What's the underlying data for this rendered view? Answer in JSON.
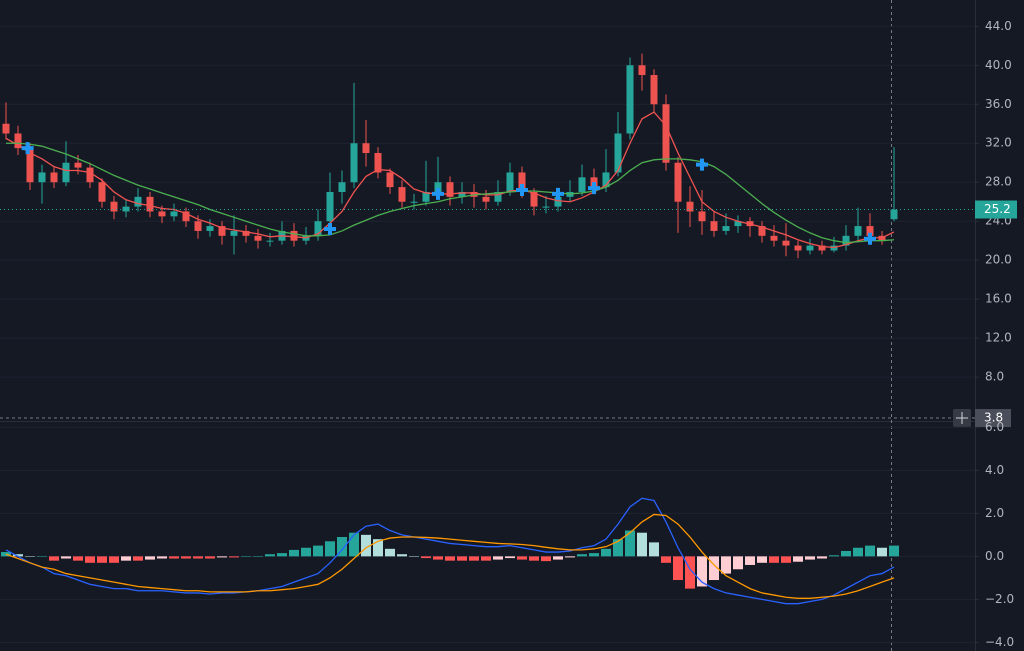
{
  "chart_data": [
    {
      "type": "candlestick",
      "open": [
        34,
        33,
        31.5,
        28,
        29,
        28,
        30,
        29.5,
        28,
        26,
        25,
        25.5,
        26.5,
        25,
        24.5,
        25,
        24,
        23,
        23.5,
        22.5,
        23,
        22.5,
        22,
        22,
        23,
        22,
        22.5,
        24,
        27,
        28,
        32,
        31,
        29,
        27.5,
        26,
        26,
        27,
        28,
        26.5,
        27,
        26.5,
        26,
        27,
        29,
        27,
        25.5,
        25.5,
        26.5,
        27,
        28.5,
        27.5,
        29,
        33,
        40,
        39,
        36,
        30,
        26,
        25,
        24,
        23,
        23.5,
        24,
        23.5,
        22.5,
        22,
        21.5,
        21,
        21.5,
        21,
        21.5,
        22.5,
        23.5,
        22.5,
        24.2
      ],
      "high": [
        36.2,
        33.8,
        32,
        29.8,
        29.6,
        32.2,
        30.8,
        30,
        28.4,
        26.6,
        26.2,
        27.4,
        27,
        25.6,
        25.8,
        25.4,
        24.6,
        24.2,
        24,
        24.6,
        23.6,
        23.2,
        22.8,
        24,
        23.8,
        23.4,
        25.2,
        29,
        29.2,
        38.2,
        34.4,
        31.6,
        29.4,
        28.2,
        26.8,
        30.2,
        30.6,
        28.6,
        28,
        27.8,
        27.2,
        28.2,
        30,
        29.6,
        27.4,
        26.6,
        27.2,
        28.2,
        29.8,
        29.4,
        31.4,
        35.2,
        40.8,
        41.2,
        39.6,
        37,
        30.6,
        27.6,
        27.2,
        25,
        24.8,
        24.6,
        24.4,
        24,
        23.6,
        23.8,
        22,
        22.2,
        22,
        22.4,
        23.6,
        25.4,
        24.8,
        23,
        31.6
      ],
      "low": [
        32.4,
        30.8,
        27.2,
        25.8,
        27.4,
        27.6,
        28.8,
        27.4,
        25.4,
        24.2,
        24.4,
        25,
        24.4,
        23.8,
        24,
        23.4,
        22.2,
        22.4,
        21.6,
        20.6,
        21.8,
        21.2,
        21.4,
        21.6,
        21.4,
        21.6,
        22,
        23.6,
        25.8,
        27.4,
        29.6,
        28.4,
        26.8,
        25.4,
        25.2,
        25.6,
        26.4,
        25.6,
        25.8,
        25.4,
        25.2,
        25.6,
        26.6,
        26.4,
        24.6,
        24.8,
        25,
        26,
        26.6,
        26.8,
        27,
        28.6,
        32.4,
        37.4,
        35.2,
        29.2,
        22.8,
        23.4,
        22.6,
        22.4,
        22.6,
        22.8,
        22.4,
        21.8,
        21.4,
        20.4,
        20.2,
        20.6,
        20.6,
        20.8,
        21,
        22,
        22,
        21.6,
        24
      ],
      "close": [
        33,
        31.5,
        28,
        29,
        28,
        30,
        29.5,
        28,
        26,
        25,
        25.5,
        26.5,
        25,
        24.5,
        25,
        24,
        23,
        23.5,
        22.5,
        23,
        22.5,
        22,
        22,
        23,
        22,
        22.5,
        24,
        27,
        28,
        32,
        31,
        29,
        27.5,
        26,
        26,
        27,
        28,
        26.5,
        27,
        26.5,
        26,
        27,
        29,
        27,
        25.5,
        25.5,
        26.5,
        27,
        28.5,
        27.5,
        29,
        33,
        40,
        39,
        36,
        30,
        26,
        25,
        24,
        23,
        23.5,
        24,
        23.5,
        22.5,
        22,
        21.5,
        21,
        21.5,
        21,
        21.5,
        22.5,
        23.5,
        22.5,
        22,
        25.2
      ],
      "up_color": "#26a69a",
      "down_color": "#ef5350",
      "lines": [
        {
          "color": "#f05350",
          "values": [
            32.5,
            31.8,
            31,
            30.4,
            29.6,
            29.2,
            29.2,
            29,
            28.2,
            27,
            26.2,
            25.8,
            25.6,
            25.3,
            25.2,
            24.8,
            24.2,
            23.8,
            23.3,
            23.1,
            22.9,
            22.7,
            22.4,
            22.5,
            22.4,
            22.3,
            22.7,
            23.8,
            25,
            27,
            28.6,
            29.3,
            29.2,
            28.4,
            27.3,
            26.9,
            26.8,
            26.8,
            26.9,
            26.9,
            26.7,
            26.7,
            27.1,
            27.2,
            26.9,
            26.4,
            26.1,
            26,
            26.4,
            27,
            27.7,
            29.2,
            32,
            34.5,
            35.2,
            33.8,
            31,
            28.5,
            26,
            25,
            24.4,
            24,
            23.7,
            23.4,
            23,
            22.6,
            22.1,
            21.7,
            21.4,
            21.3,
            21.6,
            22,
            22.3,
            22.3,
            22.9
          ]
        },
        {
          "color": "#4caf50",
          "values": [
            32,
            32,
            31.9,
            31.7,
            31.3,
            30.9,
            30.4,
            29.9,
            29.3,
            28.7,
            28.2,
            27.7,
            27.3,
            26.9,
            26.5,
            26.1,
            25.7,
            25.2,
            24.8,
            24.4,
            24,
            23.6,
            23.2,
            22.9,
            22.7,
            22.5,
            22.5,
            22.6,
            23,
            23.6,
            24.1,
            24.6,
            25,
            25.3,
            25.6,
            25.8,
            26,
            26.3,
            26.5,
            26.7,
            26.8,
            26.9,
            27,
            27.1,
            27.1,
            27,
            26.9,
            26.8,
            26.9,
            27.1,
            27.5,
            28.2,
            29.2,
            30,
            30.3,
            30.4,
            30.4,
            30.3,
            30.1,
            29.6,
            28.8,
            27.8,
            26.8,
            25.8,
            24.9,
            24.1,
            23.4,
            22.8,
            22.3,
            22,
            21.8,
            21.9,
            22,
            22,
            22.1
          ]
        }
      ],
      "signals": {
        "color": "#2196f3",
        "x": [
          1.8,
          27,
          36,
          43,
          46,
          49,
          58,
          72
        ],
        "values": [
          31.5,
          23.2,
          26.8,
          27.2,
          26.8,
          27.4,
          29.8,
          22.2
        ]
      },
      "ylim": [
        3.6,
        46.7
      ],
      "yticks": [
        {
          "value": 8,
          "label": "8.0"
        },
        {
          "value": 12,
          "label": "12.0"
        },
        {
          "value": 16,
          "label": "16.0"
        },
        {
          "value": 20,
          "label": "20.0"
        },
        {
          "value": 24,
          "label": "24.0"
        },
        {
          "value": 28,
          "label": "28.0"
        },
        {
          "value": 32,
          "label": "32.0"
        },
        {
          "value": 36,
          "label": "36.0"
        },
        {
          "value": 40,
          "label": "40.0"
        },
        {
          "value": 44,
          "label": "44.0"
        }
      ],
      "last_price": 25.2,
      "crosshair": 3.8
    },
    {
      "type": "macd",
      "histogram": [
        0.2,
        0.1,
        0,
        0,
        -0.2,
        -0.1,
        -0.2,
        -0.3,
        -0.3,
        -0.3,
        -0.2,
        -0.2,
        -0.15,
        -0.1,
        -0.1,
        -0.1,
        -0.1,
        -0.1,
        -0.05,
        -0.05,
        0,
        0,
        0.1,
        0.15,
        0.3,
        0.4,
        0.5,
        0.7,
        0.9,
        1.1,
        1.0,
        0.8,
        0.35,
        0.1,
        0,
        -0.08,
        -0.15,
        -0.2,
        -0.2,
        -0.2,
        -0.2,
        -0.15,
        -0.08,
        -0.15,
        -0.2,
        -0.22,
        -0.15,
        -0.05,
        0.1,
        0.15,
        0.35,
        0.8,
        1.2,
        1.1,
        0.65,
        -0.3,
        -1.1,
        -1.5,
        -1.4,
        -1.1,
        -0.8,
        -0.6,
        -0.4,
        -0.3,
        -0.3,
        -0.3,
        -0.25,
        -0.15,
        -0.1,
        0.05,
        0.25,
        0.4,
        0.5,
        0.4,
        0.5
      ],
      "hist_colors": {
        "pos_rising": "#26a69a",
        "pos_falling": "#b2dfdb",
        "neg_falling": "#ff5252",
        "neg_rising": "#ffcdd2"
      },
      "macd": {
        "color": "#2962ff",
        "values": [
          0.3,
          0,
          -0.3,
          -0.5,
          -0.8,
          -0.9,
          -1.1,
          -1.3,
          -1.4,
          -1.5,
          -1.5,
          -1.6,
          -1.6,
          -1.6,
          -1.65,
          -1.7,
          -1.7,
          -1.75,
          -1.7,
          -1.7,
          -1.65,
          -1.6,
          -1.5,
          -1.4,
          -1.2,
          -1,
          -0.8,
          -0.3,
          0.3,
          1,
          1.4,
          1.5,
          1.2,
          1,
          0.9,
          0.8,
          0.7,
          0.6,
          0.55,
          0.5,
          0.45,
          0.45,
          0.5,
          0.4,
          0.3,
          0.2,
          0.2,
          0.25,
          0.4,
          0.5,
          0.8,
          1.5,
          2.3,
          2.7,
          2.6,
          1.6,
          0.4,
          -0.6,
          -1.2,
          -1.5,
          -1.7,
          -1.8,
          -1.9,
          -2,
          -2.1,
          -2.2,
          -2.2,
          -2.1,
          -2,
          -1.8,
          -1.5,
          -1.2,
          -0.9,
          -0.8,
          -0.5
        ]
      },
      "signal": {
        "color": "#ff9800",
        "values": [
          0.1,
          -0.1,
          -0.3,
          -0.5,
          -0.6,
          -0.8,
          -0.9,
          -1,
          -1.1,
          -1.2,
          -1.3,
          -1.4,
          -1.45,
          -1.5,
          -1.55,
          -1.6,
          -1.6,
          -1.65,
          -1.65,
          -1.65,
          -1.65,
          -1.6,
          -1.6,
          -1.55,
          -1.5,
          -1.4,
          -1.3,
          -1,
          -0.6,
          -0.1,
          0.4,
          0.7,
          0.85,
          0.9,
          0.9,
          0.88,
          0.85,
          0.8,
          0.75,
          0.7,
          0.65,
          0.6,
          0.58,
          0.55,
          0.5,
          0.42,
          0.35,
          0.3,
          0.3,
          0.35,
          0.45,
          0.7,
          1.1,
          1.6,
          1.95,
          1.9,
          1.5,
          0.9,
          0.2,
          -0.4,
          -0.9,
          -1.2,
          -1.5,
          -1.7,
          -1.8,
          -1.9,
          -1.95,
          -1.95,
          -1.9,
          -1.85,
          -1.75,
          -1.6,
          -1.4,
          -1.2,
          -1
        ]
      },
      "ylim": [
        -4.4,
        6.2
      ],
      "yticks": [
        {
          "value": -4,
          "label": "−4.0"
        },
        {
          "value": -2,
          "label": "−2.0"
        },
        {
          "value": 0,
          "label": "0.0"
        },
        {
          "value": 2,
          "label": "2.0"
        },
        {
          "value": 4,
          "label": "4.0"
        },
        {
          "value": 6,
          "label": "6.0"
        }
      ]
    }
  ]
}
